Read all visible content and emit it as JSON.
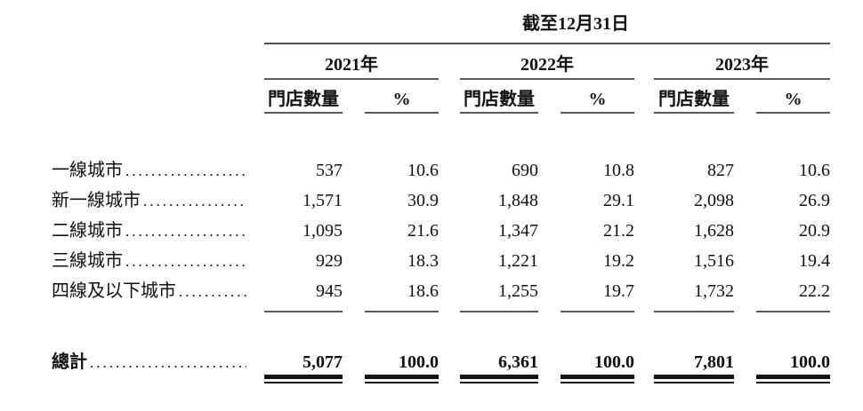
{
  "page": {
    "background_color": "#ffffff",
    "text_color": "#111111",
    "rule_color": "#5a5a5a"
  },
  "table": {
    "title": "截至12月31日",
    "years": [
      "2021年",
      "2022年",
      "2023年"
    ],
    "subheaders": {
      "stores": "門店數量",
      "percent": "%"
    },
    "rows": [
      {
        "label": "一線城市",
        "values": [
          "537",
          "10.6",
          "690",
          "10.8",
          "827",
          "10.6"
        ]
      },
      {
        "label": "新一線城市",
        "values": [
          "1,571",
          "30.9",
          "1,848",
          "29.1",
          "2,098",
          "26.9"
        ]
      },
      {
        "label": "二線城市",
        "values": [
          "1,095",
          "21.6",
          "1,347",
          "21.2",
          "1,628",
          "20.9"
        ]
      },
      {
        "label": "三線城市",
        "values": [
          "929",
          "18.3",
          "1,221",
          "19.2",
          "1,516",
          "19.4"
        ]
      },
      {
        "label": "四線及以下城市",
        "values": [
          "945",
          "18.6",
          "1,255",
          "19.7",
          "1,732",
          "22.2"
        ]
      }
    ],
    "total": {
      "label": "總計",
      "values": [
        "5,077",
        "100.0",
        "6,361",
        "100.0",
        "7,801",
        "100.0"
      ]
    }
  }
}
